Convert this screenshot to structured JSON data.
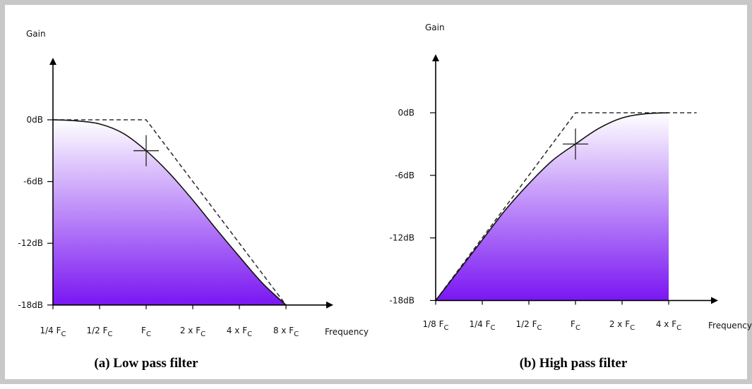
{
  "chart_data": [
    {
      "type": "line",
      "caption": "(a) Low pass filter",
      "xlabel": "Frequency",
      "ylabel": "Gain",
      "x_ticks": [
        {
          "main": "1/4 F",
          "sub": "C"
        },
        {
          "main": "1/2 F",
          "sub": "C"
        },
        {
          "main": "F",
          "sub": "C"
        },
        {
          "main": "2 x F",
          "sub": "C"
        },
        {
          "main": "4 x F",
          "sub": "C"
        },
        {
          "main": "8 x F",
          "sub": "C"
        }
      ],
      "y_ticks": [
        {
          "value": 0,
          "label": "0dB"
        },
        {
          "value": -6,
          "label": "-6dB"
        },
        {
          "value": -12,
          "label": "-12dB"
        },
        {
          "value": -18,
          "label": "-18dB"
        }
      ],
      "ylim": [
        -18,
        9
      ],
      "xlim": [
        0,
        6
      ],
      "cutoff_marker": {
        "x": 2,
        "y": -3
      },
      "series": [
        {
          "style": "solid",
          "x": [
            0,
            0.5,
            1,
            1.5,
            2,
            2.5,
            3,
            3.5,
            4,
            4.5,
            5
          ],
          "y": [
            0,
            -0.1,
            -0.4,
            -1.3,
            -3,
            -5.2,
            -7.8,
            -10.6,
            -13.3,
            -15.9,
            -18
          ]
        },
        {
          "style": "dashed",
          "x": [
            0,
            2,
            5
          ],
          "y": [
            0,
            0,
            -18
          ]
        }
      ],
      "gradient": {
        "top": "#ffffff",
        "bottom": "#7a16f2"
      }
    },
    {
      "type": "line",
      "caption": "(b) High pass filter",
      "xlabel": "Frequency",
      "ylabel": "Gain",
      "x_ticks": [
        {
          "main": "1/8 F",
          "sub": "C"
        },
        {
          "main": "1/4 F",
          "sub": "C"
        },
        {
          "main": "1/2 F",
          "sub": "C"
        },
        {
          "main": "F",
          "sub": "C"
        },
        {
          "main": "2 x F",
          "sub": "C"
        },
        {
          "main": "4 x F",
          "sub": "C"
        }
      ],
      "y_ticks": [
        {
          "value": 0,
          "label": "0dB"
        },
        {
          "value": -6,
          "label": "-6dB"
        },
        {
          "value": -12,
          "label": "-12dB"
        },
        {
          "value": -18,
          "label": "-18dB"
        }
      ],
      "ylim": [
        -18,
        9
      ],
      "xlim": [
        0,
        6
      ],
      "cutoff_marker": {
        "x": 3,
        "y": -3
      },
      "series": [
        {
          "style": "solid",
          "x": [
            0,
            0.5,
            1,
            1.5,
            2,
            2.5,
            3,
            3.5,
            4,
            4.5,
            5
          ],
          "y": [
            -18,
            -15.1,
            -12.2,
            -9.3,
            -6.8,
            -4.6,
            -3,
            -1.5,
            -0.5,
            -0.1,
            0
          ]
        },
        {
          "style": "dashed",
          "x": [
            0,
            3,
            5.6
          ],
          "y": [
            -18,
            0,
            0
          ]
        }
      ],
      "gradient": {
        "top": "#ffffff",
        "bottom": "#7a16f2"
      }
    }
  ]
}
